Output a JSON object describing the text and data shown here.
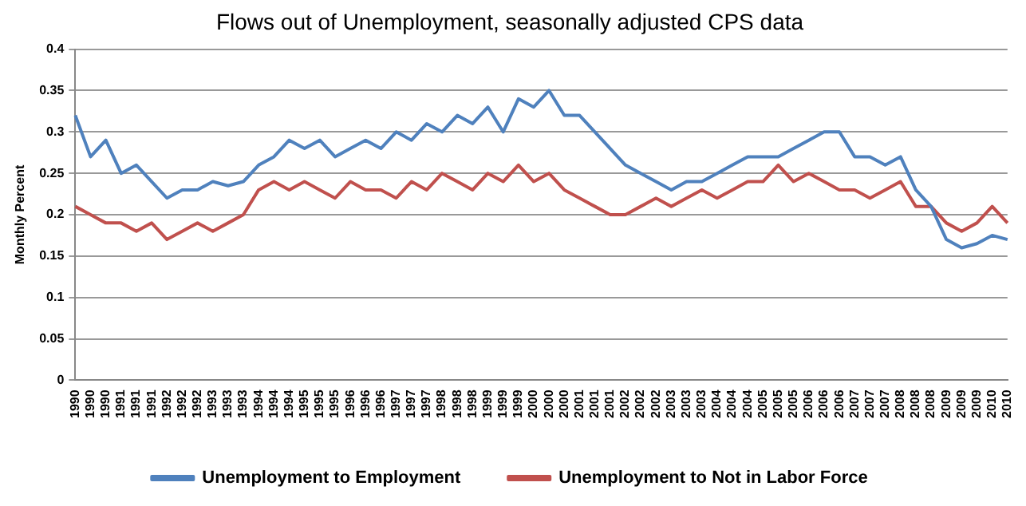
{
  "chart_data": {
    "type": "line",
    "title": "Flows out of Unemployment, seasonally adjusted CPS data",
    "ylabel": "Monthly Percent",
    "categories": [
      "1990",
      "1990",
      "1990",
      "1991",
      "1991",
      "1991",
      "1992",
      "1992",
      "1992",
      "1993",
      "1993",
      "1993",
      "1994",
      "1994",
      "1994",
      "1995",
      "1995",
      "1995",
      "1996",
      "1996",
      "1996",
      "1997",
      "1997",
      "1997",
      "1998",
      "1998",
      "1998",
      "1999",
      "1999",
      "1999",
      "2000",
      "2000",
      "2000",
      "2001",
      "2001",
      "2001",
      "2002",
      "2002",
      "2002",
      "2003",
      "2003",
      "2003",
      "2004",
      "2004",
      "2004",
      "2005",
      "2005",
      "2005",
      "2006",
      "2006",
      "2006",
      "2007",
      "2007",
      "2007",
      "2008",
      "2008",
      "2008",
      "2009",
      "2009",
      "2009",
      "2010",
      "2010"
    ],
    "series": [
      {
        "name": "Unemployment to Employment",
        "color": "#4f81bd",
        "values": [
          0.32,
          0.27,
          0.29,
          0.25,
          0.26,
          0.24,
          0.22,
          0.23,
          0.23,
          0.24,
          0.235,
          0.24,
          0.26,
          0.27,
          0.29,
          0.28,
          0.29,
          0.27,
          0.28,
          0.29,
          0.28,
          0.3,
          0.29,
          0.31,
          0.3,
          0.32,
          0.31,
          0.33,
          0.3,
          0.34,
          0.33,
          0.35,
          0.32,
          0.32,
          0.3,
          0.28,
          0.26,
          0.25,
          0.24,
          0.23,
          0.24,
          0.24,
          0.25,
          0.26,
          0.27,
          0.27,
          0.27,
          0.28,
          0.29,
          0.3,
          0.3,
          0.27,
          0.27,
          0.26,
          0.27,
          0.23,
          0.21,
          0.17,
          0.16,
          0.165,
          0.175,
          0.17
        ]
      },
      {
        "name": "Unemployment to Not in Labor Force",
        "color": "#c0504d",
        "values": [
          0.21,
          0.2,
          0.19,
          0.19,
          0.18,
          0.19,
          0.17,
          0.18,
          0.19,
          0.18,
          0.19,
          0.2,
          0.23,
          0.24,
          0.23,
          0.24,
          0.23,
          0.22,
          0.24,
          0.23,
          0.23,
          0.22,
          0.24,
          0.23,
          0.25,
          0.24,
          0.23,
          0.25,
          0.24,
          0.26,
          0.24,
          0.25,
          0.23,
          0.22,
          0.21,
          0.2,
          0.2,
          0.21,
          0.22,
          0.21,
          0.22,
          0.23,
          0.22,
          0.23,
          0.24,
          0.24,
          0.26,
          0.24,
          0.25,
          0.24,
          0.23,
          0.23,
          0.22,
          0.23,
          0.24,
          0.21,
          0.21,
          0.19,
          0.18,
          0.19,
          0.21,
          0.19
        ]
      }
    ],
    "ylim": [
      0,
      0.4
    ],
    "yticks": [
      0,
      0.05,
      0.1,
      0.15,
      0.2,
      0.25,
      0.3,
      0.35,
      0.4
    ],
    "grid": "y",
    "legend": "bottom",
    "marker": "none",
    "line_style": "solid"
  }
}
